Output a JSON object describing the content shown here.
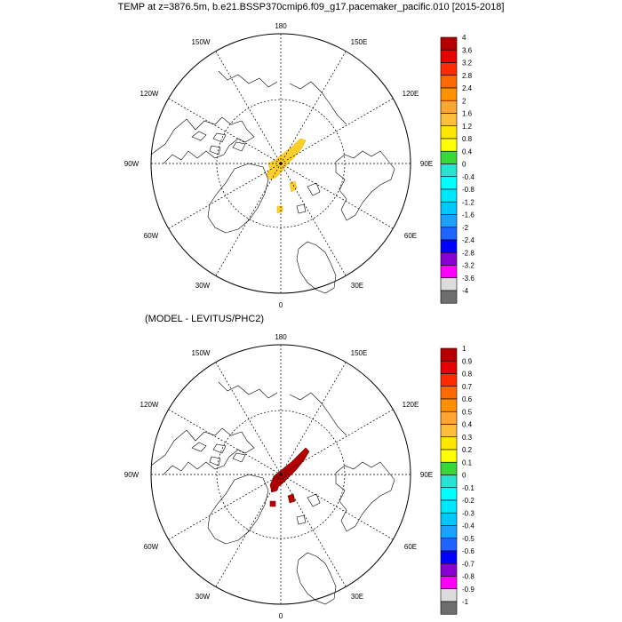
{
  "title": "TEMP at z=3876.5m, b.e21.BSSP370cmip6.f09_g17.pacemaker_pacific.010 [2015-2018]",
  "panel2_title": "(MODEL - LEVITUS/PHC2)",
  "lon_labels": [
    "180",
    "150E",
    "120E",
    "90E",
    "60E",
    "30E",
    "0",
    "30W",
    "60W",
    "90W",
    "120W",
    "150W"
  ],
  "colorbar_top": {
    "labels": [
      "4",
      "3.6",
      "3.2",
      "2.8",
      "2.4",
      "2",
      "1.6",
      "1.2",
      "0.8",
      "0.4",
      "0",
      "-0.4",
      "-0.8",
      "-1.2",
      "-1.6",
      "-2",
      "-2.4",
      "-2.8",
      "-3.2",
      "-3.6",
      "-4"
    ],
    "colors": [
      "#b40000",
      "#e60000",
      "#ff2a00",
      "#ff6a00",
      "#ff9000",
      "#ffa530",
      "#ffbd3c",
      "#ffe600",
      "#ffff00",
      "#38d838",
      "#28e2d2",
      "#00ffff",
      "#00e6ff",
      "#00c8ff",
      "#1ea0ff",
      "#1e64ff",
      "#0000ff",
      "#8a00d4",
      "#ff00ff",
      "#dcdcdc",
      "#6e6e6e"
    ]
  },
  "colorbar_bottom": {
    "labels": [
      "1",
      "0.9",
      "0.8",
      "0.7",
      "0.6",
      "0.5",
      "0.4",
      "0.3",
      "0.2",
      "0.1",
      "0",
      "-0.1",
      "-0.2",
      "-0.3",
      "-0.4",
      "-0.5",
      "-0.6",
      "-0.7",
      "-0.8",
      "-0.9",
      "-1"
    ],
    "colors": [
      "#b40000",
      "#e60000",
      "#ff2a00",
      "#ff6a00",
      "#ff9000",
      "#ffa530",
      "#ffbd3c",
      "#ffe600",
      "#ffff00",
      "#38d838",
      "#28e2d2",
      "#00ffff",
      "#00e6ff",
      "#00c8ff",
      "#1ea0ff",
      "#1e64ff",
      "#0000ff",
      "#8a00d4",
      "#ff00ff",
      "#dcdcdc",
      "#6e6e6e"
    ]
  },
  "anomaly_colors": {
    "top": "#ffd02a",
    "bottom": "#b40000"
  }
}
